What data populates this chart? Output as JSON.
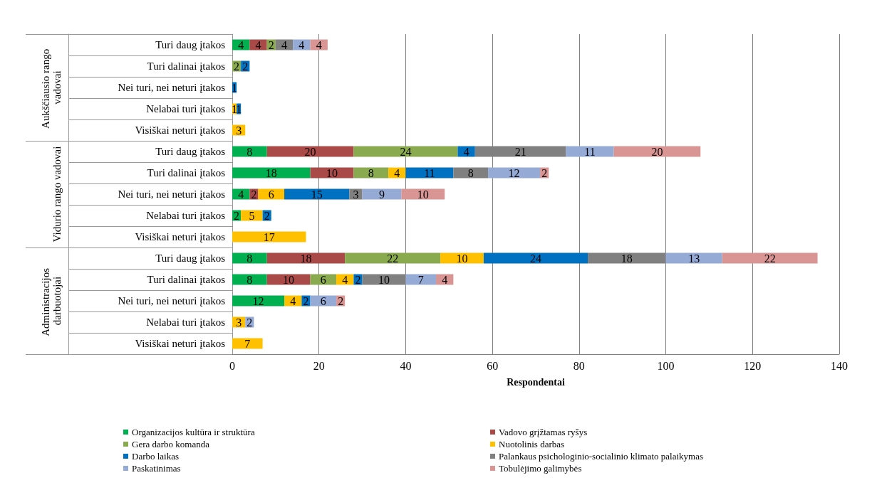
{
  "chart_data": {
    "type": "bar",
    "orientation": "horizontal",
    "stacked": true,
    "data_labels": true,
    "xlabel": "Respondentai",
    "xlim": [
      0,
      140
    ],
    "xticks": [
      0,
      20,
      40,
      60,
      80,
      100,
      120,
      140
    ],
    "grid": "x",
    "legend": "bottom",
    "annotations": [
      "Aukščiausio rango vadovai",
      "Vidurio rango vadovai",
      "Administracijos darbuotojai"
    ],
    "categories": [
      "Turi daug įtakos",
      "Turi dalinai įtakos",
      "Nei turi, nei neturi įtakos",
      "Nelabai turi įtakos",
      "Visiškai neturi įtakos",
      "Turi daug įtakos",
      "Turi dalinai įtakos",
      "Nei turi, nei neturi įtakos",
      "Nelabai turi įtakos",
      "Visiškai neturi įtakos",
      "Turi daug įtakos",
      "Turi dalinai įtakos",
      "Nei turi, nei neturi įtakos",
      "Nelabai turi įtakos",
      "Visiškai neturi įtakos"
    ],
    "series": [
      {
        "name": "Organizacijos kultūra ir struktūra",
        "color": "#00b050",
        "values": [
          4,
          null,
          null,
          null,
          null,
          8,
          18,
          4,
          2,
          null,
          8,
          8,
          12,
          null,
          null
        ]
      },
      {
        "name": "Vadovo grįžtamas ryšys",
        "color": "#aa4a48",
        "values": [
          4,
          null,
          null,
          null,
          null,
          20,
          10,
          2,
          null,
          null,
          18,
          10,
          null,
          null,
          null
        ]
      },
      {
        "name": "Gera darbo komanda",
        "color": "#8aaa50",
        "values": [
          2,
          2,
          null,
          null,
          null,
          24,
          8,
          null,
          null,
          null,
          22,
          6,
          null,
          null,
          null
        ]
      },
      {
        "name": "Nuotolinis darbas",
        "color": "#ffc000",
        "values": [
          null,
          null,
          null,
          1,
          3,
          null,
          4,
          6,
          5,
          17,
          10,
          4,
          4,
          3,
          7
        ]
      },
      {
        "name": "Darbo laikas",
        "color": "#0070c0",
        "values": [
          null,
          2,
          1,
          1,
          null,
          4,
          11,
          15,
          2,
          null,
          24,
          2,
          2,
          null,
          null
        ]
      },
      {
        "name": "Palankaus psichologinio-socialinio klimato palaikymas",
        "color": "#808080",
        "values": [
          4,
          null,
          null,
          null,
          null,
          21,
          8,
          3,
          null,
          null,
          18,
          10,
          null,
          null,
          null
        ]
      },
      {
        "name": "Paskatinimas",
        "color": "#95abd5",
        "values": [
          4,
          null,
          null,
          null,
          null,
          11,
          12,
          9,
          null,
          null,
          13,
          7,
          6,
          2,
          null
        ]
      },
      {
        "name": "Tobulėjimo galimybės",
        "color": "#d99594",
        "values": [
          4,
          null,
          null,
          null,
          null,
          20,
          2,
          10,
          null,
          null,
          22,
          4,
          2,
          null,
          null
        ]
      }
    ]
  }
}
